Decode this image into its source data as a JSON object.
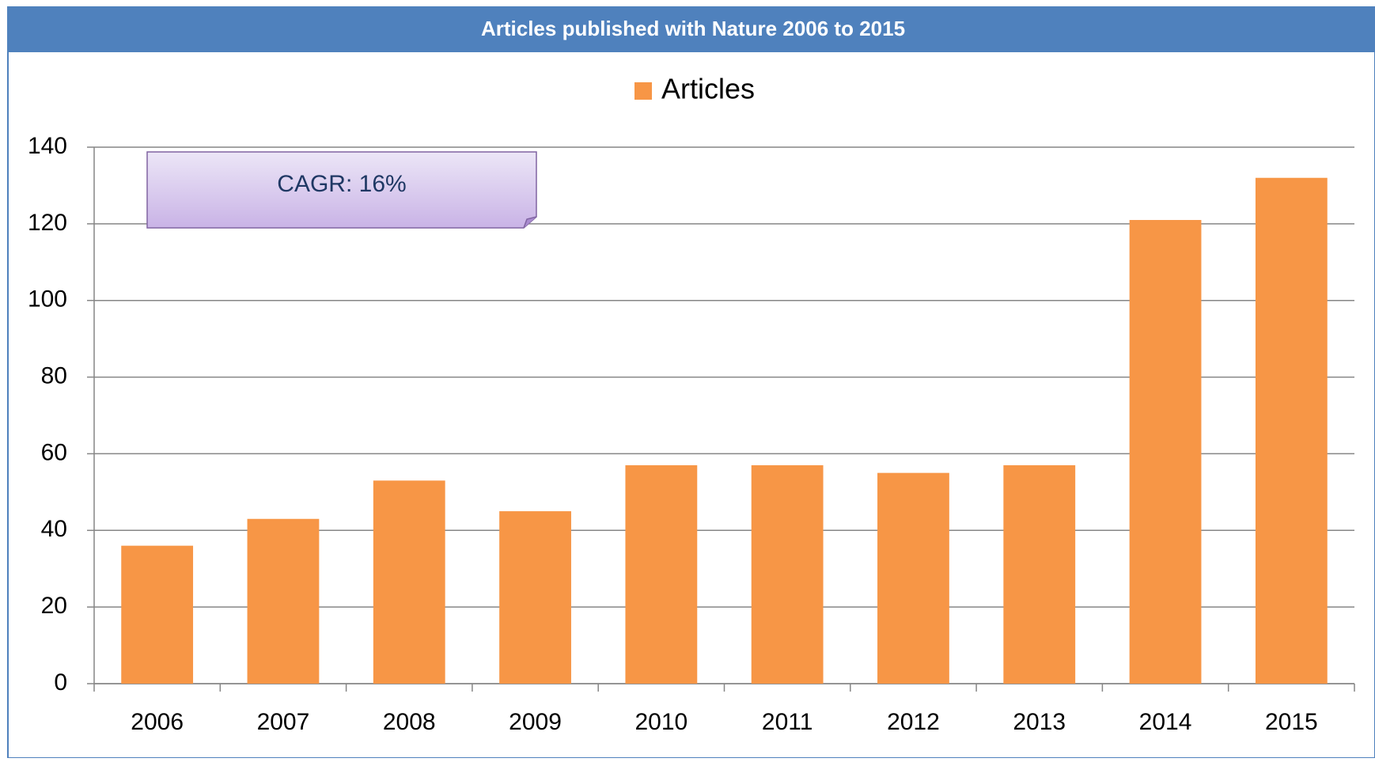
{
  "chart_data": {
    "type": "bar",
    "title": "Articles published with Nature 2006 to 2015",
    "categories": [
      "2006",
      "2007",
      "2008",
      "2009",
      "2010",
      "2011",
      "2012",
      "2013",
      "2014",
      "2015"
    ],
    "series": [
      {
        "name": "Articles",
        "color": "#f79646",
        "values": [
          36,
          43,
          53,
          45,
          57,
          57,
          55,
          57,
          121,
          132
        ]
      }
    ],
    "annotation": "CAGR: 16%",
    "ylim": [
      0,
      140
    ],
    "yticks": [
      0,
      20,
      40,
      60,
      80,
      100,
      120,
      140
    ],
    "grid": true,
    "legend": "top"
  }
}
